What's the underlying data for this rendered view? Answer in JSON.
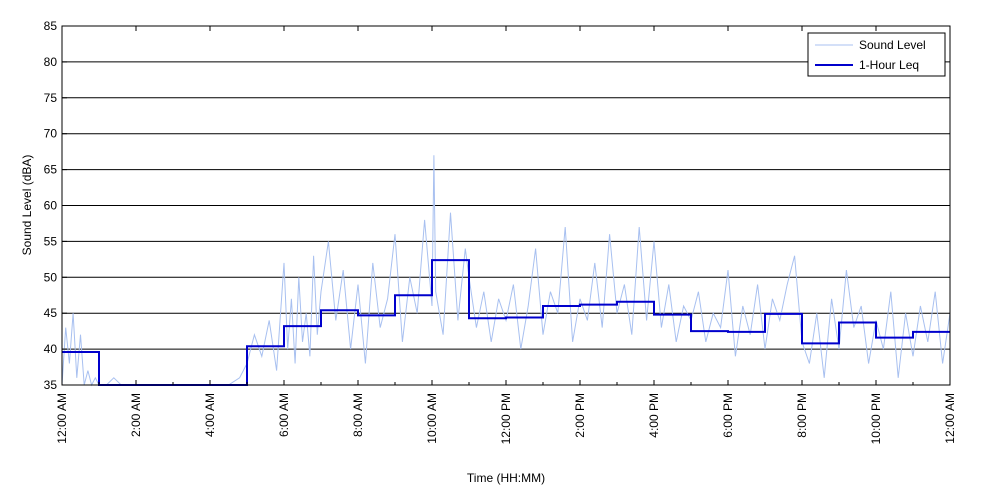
{
  "chart_data": {
    "type": "line",
    "title": "",
    "xlabel": "Time (HH:MM)",
    "ylabel": "Sound Level (dBA)",
    "x_unit": "hours",
    "xlim": [
      0,
      24
    ],
    "ylim": [
      35,
      85
    ],
    "yticks": [
      35,
      40,
      45,
      50,
      55,
      60,
      65,
      70,
      75,
      80,
      85
    ],
    "xticks": [
      0,
      2,
      4,
      6,
      8,
      10,
      12,
      14,
      16,
      18,
      20,
      22,
      24
    ],
    "xtick_labels": [
      "12:00 AM",
      "2:00 AM",
      "4:00 AM",
      "6:00 AM",
      "8:00 AM",
      "10:00 AM",
      "12:00 PM",
      "2:00 PM",
      "4:00 PM",
      "6:00 PM",
      "8:00 PM",
      "10:00 PM",
      "12:00 AM"
    ],
    "grid": "horizontal",
    "legend": {
      "position": "top-right",
      "entries": [
        "Sound Level",
        "1-Hour Leq"
      ]
    },
    "colors": {
      "sound_level": "#a8c0f0",
      "leq": "#0000cc",
      "grid": "#000000"
    },
    "series": [
      {
        "name": "Sound Level",
        "style": "thin-light",
        "x": [
          0,
          0.1,
          0.2,
          0.3,
          0.4,
          0.5,
          0.6,
          0.7,
          0.8,
          0.9,
          1.0,
          1.2,
          1.4,
          1.6,
          2.0,
          2.5,
          3.0,
          3.5,
          4.0,
          4.5,
          4.8,
          5.0,
          5.2,
          5.4,
          5.6,
          5.8,
          6.0,
          6.1,
          6.2,
          6.3,
          6.4,
          6.5,
          6.6,
          6.7,
          6.8,
          6.9,
          7.0,
          7.2,
          7.4,
          7.6,
          7.8,
          8.0,
          8.2,
          8.4,
          8.6,
          8.8,
          9.0,
          9.2,
          9.4,
          9.6,
          9.8,
          10.0,
          10.05,
          10.1,
          10.3,
          10.5,
          10.7,
          10.9,
          11.0,
          11.2,
          11.4,
          11.6,
          11.8,
          12.0,
          12.2,
          12.4,
          12.6,
          12.8,
          13.0,
          13.2,
          13.4,
          13.6,
          13.8,
          14.0,
          14.2,
          14.4,
          14.6,
          14.8,
          15.0,
          15.2,
          15.4,
          15.6,
          15.8,
          16.0,
          16.2,
          16.4,
          16.6,
          16.8,
          17.0,
          17.2,
          17.4,
          17.6,
          17.8,
          18.0,
          18.2,
          18.4,
          18.6,
          18.8,
          19.0,
          19.2,
          19.4,
          19.6,
          19.8,
          20.0,
          20.2,
          20.4,
          20.6,
          20.8,
          21.0,
          21.2,
          21.4,
          21.6,
          21.8,
          22.0,
          22.2,
          22.4,
          22.6,
          22.8,
          23.0,
          23.2,
          23.4,
          23.6,
          23.8,
          24.0
        ],
        "y": [
          35,
          43,
          38,
          45,
          36,
          42,
          35,
          37,
          35,
          36,
          35,
          35,
          36,
          35,
          35,
          35,
          35,
          35,
          35,
          35,
          36,
          38,
          42,
          39,
          44,
          37,
          52,
          40,
          47,
          38,
          50,
          41,
          45,
          39,
          53,
          42,
          48,
          55,
          44,
          51,
          40,
          49,
          38,
          52,
          43,
          47,
          56,
          41,
          50,
          45,
          58,
          46,
          67,
          48,
          42,
          59,
          44,
          54,
          50,
          43,
          48,
          41,
          47,
          44,
          49,
          40,
          46,
          54,
          42,
          48,
          45,
          57,
          41,
          47,
          44,
          52,
          43,
          56,
          45,
          49,
          42,
          57,
          44,
          55,
          43,
          49,
          41,
          46,
          44,
          48,
          41,
          45,
          43,
          51,
          39,
          46,
          42,
          49,
          40,
          47,
          44,
          49,
          53,
          41,
          38,
          45,
          36,
          47,
          40,
          51,
          43,
          46,
          38,
          44,
          40,
          48,
          36,
          45,
          39,
          46,
          41,
          48,
          38,
          45
        ]
      },
      {
        "name": "1-Hour Leq",
        "style": "step",
        "hours": [
          0,
          1,
          2,
          3,
          4,
          5,
          6,
          7,
          8,
          9,
          10,
          11,
          12,
          13,
          14,
          15,
          16,
          17,
          18,
          19,
          20,
          21,
          22,
          23
        ],
        "values": [
          39.6,
          33.0,
          33.0,
          33.0,
          33.0,
          40.4,
          43.2,
          45.4,
          44.7,
          47.5,
          52.4,
          44.3,
          44.4,
          46.0,
          46.2,
          46.6,
          44.8,
          42.5,
          42.4,
          44.9,
          40.8,
          43.7,
          41.6,
          42.4
        ]
      }
    ]
  }
}
